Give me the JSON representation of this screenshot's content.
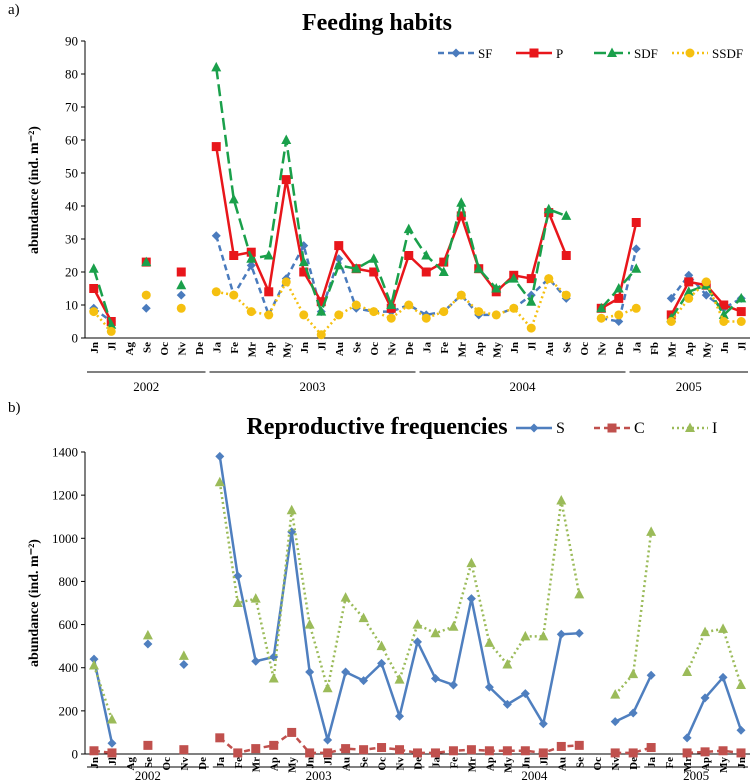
{
  "chart_data": [
    {
      "type": "line",
      "panel_label": "a)",
      "title": "Feeding habits",
      "y_label": "abundance (ind. m⁻²)",
      "categories": [
        "Jn",
        "Jl",
        "Ag",
        "Se",
        "Oc",
        "Nv",
        "De",
        "Ja",
        "Fe",
        "Mr",
        "Ap",
        "My",
        "Jn",
        "Jl",
        "Au",
        "Se",
        "Oc",
        "Nv",
        "De",
        "Ja",
        "Fe",
        "Mr",
        "Ap",
        "My",
        "Jn",
        "Jl",
        "Au",
        "Se",
        "Oc",
        "Nv",
        "De",
        "Ja",
        "Fb",
        "Mr",
        "Ap",
        "My",
        "Jn",
        "Jl"
      ],
      "year_groups": [
        {
          "label": "2002",
          "count": 7
        },
        {
          "label": "2003",
          "count": 12
        },
        {
          "label": "2004",
          "count": 12
        },
        {
          "label": "2005",
          "count": 7
        }
      ],
      "ylim": [
        0,
        90
      ],
      "yticks": [
        0,
        10,
        20,
        30,
        40,
        50,
        60,
        70,
        80,
        90
      ],
      "legend": "top-right-inside",
      "series": [
        {
          "name": "SF",
          "color": "#4a7bbd",
          "marker": "diamond",
          "line_style": "dashed",
          "values": [
            9,
            5,
            null,
            9,
            null,
            13,
            null,
            31,
            13,
            22,
            7,
            18,
            28,
            8,
            24,
            9,
            8,
            8,
            10,
            7,
            8,
            13,
            7,
            7,
            9,
            13,
            18,
            12,
            null,
            6,
            5,
            27,
            null,
            12,
            19,
            13,
            9,
            12
          ]
        },
        {
          "name": "P",
          "color": "#e8161b",
          "marker": "square",
          "line_style": "solid",
          "values": [
            15,
            5,
            null,
            23,
            null,
            20,
            null,
            58,
            25,
            26,
            14,
            48,
            20,
            11,
            28,
            21,
            20,
            9,
            25,
            20,
            23,
            37,
            21,
            14,
            19,
            18,
            38,
            25,
            null,
            9,
            12,
            35,
            null,
            7,
            17,
            16,
            10,
            8
          ]
        },
        {
          "name": "SDF",
          "color": "#1aa04b",
          "marker": "triangle",
          "line_style": "longdash",
          "values": [
            21,
            4,
            null,
            23,
            null,
            16,
            null,
            82,
            42,
            24,
            25,
            60,
            23,
            8,
            22,
            21,
            24,
            10,
            33,
            25,
            20,
            41,
            21,
            15,
            18,
            11,
            39,
            37,
            null,
            9,
            15,
            21,
            null,
            6,
            14,
            16,
            7,
            12
          ]
        },
        {
          "name": "SSDF",
          "color": "#f5c010",
          "marker": "circle",
          "line_style": "dotted",
          "values": [
            8,
            2,
            null,
            13,
            null,
            9,
            null,
            14,
            13,
            8,
            7,
            17,
            7,
            1,
            7,
            10,
            8,
            6,
            10,
            6,
            8,
            13,
            8,
            7,
            9,
            3,
            18,
            13,
            null,
            6,
            7,
            9,
            null,
            5,
            12,
            17,
            5,
            5
          ]
        }
      ]
    },
    {
      "type": "line",
      "panel_label": "b)",
      "title": "Reproductive frequencies",
      "y_label": "abundance (ind. m⁻²)",
      "categories": [
        "Jn",
        "Jl",
        "Ag",
        "Se",
        "Oc",
        "Nv",
        "De",
        "Ja",
        "Fe",
        "Mr",
        "Ap",
        "My",
        "Jn",
        "Jl",
        "Au",
        "Se",
        "Oc",
        "Nv",
        "De",
        "Ja",
        "Fe",
        "Mr",
        "Ap",
        "My",
        "Jn",
        "Jl",
        "Au",
        "Se",
        "Oc",
        "Nv",
        "De",
        "Ja",
        "Fe",
        "Mr",
        "Ap",
        "My",
        "Jn"
      ],
      "year_groups": [
        {
          "label": "2002",
          "count": 7
        },
        {
          "label": "2003",
          "count": 12
        },
        {
          "label": "2004",
          "count": 12
        },
        {
          "label": "2005",
          "count": 6
        }
      ],
      "ylim": [
        0,
        1400
      ],
      "yticks": [
        0,
        200,
        400,
        600,
        800,
        1000,
        1200,
        1400
      ],
      "legend": "top-right-outside",
      "series": [
        {
          "name": "S",
          "color": "#4f7fbf",
          "marker": "diamond",
          "line_style": "solid",
          "values": [
            440,
            50,
            null,
            510,
            null,
            415,
            null,
            1380,
            825,
            430,
            450,
            1030,
            380,
            65,
            380,
            340,
            420,
            175,
            520,
            350,
            320,
            720,
            310,
            230,
            280,
            140,
            555,
            560,
            null,
            150,
            190,
            365,
            null,
            75,
            260,
            355,
            110
          ]
        },
        {
          "name": "C",
          "color": "#c0504d",
          "marker": "square",
          "line_style": "dashed",
          "values": [
            15,
            5,
            null,
            40,
            null,
            20,
            null,
            75,
            5,
            25,
            40,
            100,
            5,
            5,
            25,
            20,
            30,
            20,
            5,
            5,
            15,
            20,
            15,
            15,
            15,
            5,
            35,
            40,
            null,
            5,
            5,
            30,
            null,
            5,
            10,
            15,
            5
          ]
        },
        {
          "name": "I",
          "color": "#9bbb59",
          "marker": "triangle",
          "line_style": "dotted",
          "values": [
            410,
            160,
            null,
            550,
            null,
            455,
            null,
            1260,
            700,
            720,
            350,
            1130,
            600,
            305,
            725,
            630,
            500,
            345,
            600,
            560,
            590,
            885,
            515,
            415,
            545,
            545,
            1175,
            740,
            null,
            275,
            370,
            1030,
            null,
            380,
            565,
            580,
            320
          ]
        }
      ]
    }
  ]
}
